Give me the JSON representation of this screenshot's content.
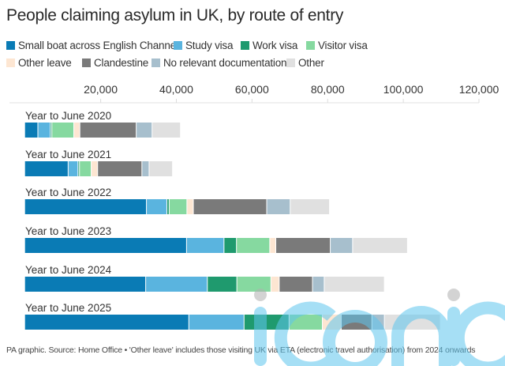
{
  "chart_data": {
    "type": "bar",
    "orientation": "horizontal",
    "stacked": true,
    "title": "People claiming asylum in UK, by route of entry",
    "xlabel": "",
    "ylabel": "",
    "xlim": [
      0,
      120000
    ],
    "xticks": [
      20000,
      40000,
      60000,
      80000,
      100000,
      120000
    ],
    "xtick_labels": [
      "20,000",
      "40,000",
      "60,000",
      "80,000",
      "100,000",
      "120,000"
    ],
    "grid": false,
    "legend_position": "top",
    "categories": [
      "Year to June 2020",
      "Year to June 2021",
      "Year to June 2022",
      "Year to June 2023",
      "Year to June 2024",
      "Year to June 2025"
    ],
    "series": [
      {
        "name": "Small boat across English Channel",
        "color": "#0a7bb5",
        "values": [
          3500,
          11500,
          32200,
          42800,
          32000,
          43400
        ]
      },
      {
        "name": "Study visa",
        "color": "#5ab4df",
        "values": [
          3300,
          2600,
          5400,
          9900,
          16300,
          14600
        ]
      },
      {
        "name": "Work visa",
        "color": "#1f9a6e",
        "values": [
          400,
          400,
          600,
          3300,
          7800,
          11900
        ]
      },
      {
        "name": "Visitor visa",
        "color": "#86d9a0",
        "values": [
          5800,
          3100,
          4700,
          8800,
          9000,
          8800
        ]
      },
      {
        "name": "Other leave",
        "color": "#fde6d2",
        "values": [
          1600,
          1700,
          1700,
          1600,
          2200,
          5000
        ]
      },
      {
        "name": "Clandestine",
        "color": "#7a7a7a",
        "values": [
          14900,
          11700,
          19400,
          14400,
          8800,
          8100
        ]
      },
      {
        "name": "No relevant documentation",
        "color": "#a7bfcd",
        "values": [
          4200,
          1900,
          6200,
          5900,
          3100,
          3300
        ]
      },
      {
        "name": "Other",
        "color": "#e0e0e0",
        "values": [
          7500,
          6200,
          10400,
          14500,
          15900,
          14800
        ]
      }
    ],
    "footer": "PA graphic. Source: Home Office • 'Other leave' includes those visiting UK via ETA (electronic travel authorisation) from 2024 onwards"
  },
  "watermark": {
    "text": "iconic",
    "color": "#5fc6ee"
  }
}
